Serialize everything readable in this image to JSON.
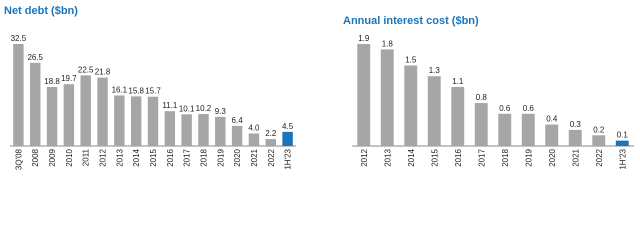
{
  "chart_data": [
    {
      "type": "bar",
      "title": "Net debt ($bn)",
      "categories": [
        "3Q'08",
        "2008",
        "2009",
        "2010",
        "2011",
        "2012",
        "2013",
        "2014",
        "2015",
        "2016",
        "2017",
        "2018",
        "2019",
        "2020",
        "2021",
        "2022",
        "1H'23"
      ],
      "values": [
        32.5,
        26.5,
        18.8,
        19.7,
        22.5,
        21.8,
        16.1,
        15.8,
        15.7,
        11.1,
        10.1,
        10.2,
        9.3,
        6.4,
        4.0,
        2.2,
        4.5
      ],
      "value_labels": [
        "32.5",
        "26.5",
        "18.8",
        "19.7",
        "22.5",
        "21.8",
        "16.1",
        "15.8",
        "15.7",
        "11.1",
        "10.1",
        "10.2",
        "9.3",
        "6.4",
        "4.0",
        "2.2",
        "4.5"
      ],
      "colors": [
        "#a6a6a6",
        "#a6a6a6",
        "#a6a6a6",
        "#a6a6a6",
        "#a6a6a6",
        "#a6a6a6",
        "#a6a6a6",
        "#a6a6a6",
        "#a6a6a6",
        "#a6a6a6",
        "#a6a6a6",
        "#a6a6a6",
        "#a6a6a6",
        "#a6a6a6",
        "#a6a6a6",
        "#a6a6a6",
        "#1a75bc"
      ]
    },
    {
      "type": "bar",
      "title": "Annual interest cost ($bn)",
      "categories": [
        "2012",
        "2013",
        "2014",
        "2015",
        "2016",
        "2017",
        "2018",
        "2019",
        "2020",
        "2021",
        "2022",
        "1H'23"
      ],
      "values": [
        1.9,
        1.8,
        1.5,
        1.3,
        1.1,
        0.8,
        0.6,
        0.6,
        0.4,
        0.3,
        0.2,
        0.1
      ],
      "colors": [
        "#a6a6a6",
        "#a6a6a6",
        "#a6a6a6",
        "#a6a6a6",
        "#a6a6a6",
        "#a6a6a6",
        "#a6a6a6",
        "#a6a6a6",
        "#a6a6a6",
        "#a6a6a6",
        "#a6a6a6",
        "#1a75bc"
      ]
    }
  ]
}
